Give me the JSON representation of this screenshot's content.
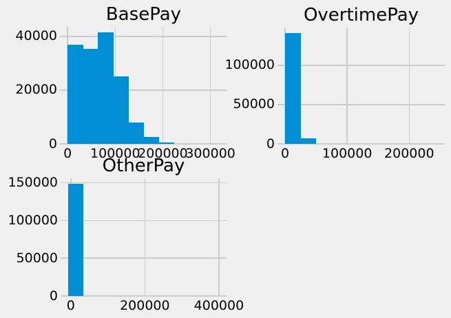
{
  "figure": {
    "background": "#f0f0f0",
    "grid_color": "#cbcbcb",
    "bar_color": "#008fd5",
    "text_color": "#000000"
  },
  "chart_data": [
    {
      "id": "basepay",
      "type": "bar",
      "kind": "histogram",
      "title": "BasePay",
      "xlabel": "",
      "ylabel": "",
      "grid": true,
      "legend": false,
      "xlim": [
        -16138,
        335247
      ],
      "ylim": [
        0,
        43580
      ],
      "xticks": [
        0,
        100000,
        200000,
        300000
      ],
      "yticks": [
        0,
        20000,
        40000
      ],
      "bin_start": -166,
      "bin_width": 31944,
      "values": [
        36900,
        35300,
        41600,
        25000,
        8000,
        2500,
        470,
        80,
        10,
        2
      ]
    },
    {
      "id": "overtimepay",
      "type": "bar",
      "kind": "histogram",
      "title": "OvertimePay",
      "xlabel": "",
      "ylabel": "",
      "grid": true,
      "legend": false,
      "xlim": [
        -12257,
        257389
      ],
      "ylim": [
        0,
        148100
      ],
      "xticks": [
        0,
        100000,
        200000
      ],
      "yticks": [
        0,
        50000,
        100000
      ],
      "bin_start": 0,
      "bin_width": 24513,
      "values": [
        141000,
        7000,
        400,
        130,
        50,
        25,
        12,
        6,
        3,
        1
      ]
    },
    {
      "id": "otherpay",
      "type": "bar",
      "kind": "histogram",
      "title": "OtherPay",
      "xlabel": "",
      "ylabel": "",
      "grid": true,
      "legend": false,
      "xlim": [
        -27420,
        420546
      ],
      "ylim": [
        0,
        156100
      ],
      "xticks": [
        0,
        200000,
        400000
      ],
      "yticks": [
        0,
        50000,
        100000,
        150000
      ],
      "bin_start": -7058,
      "bin_width": 40724,
      "values": [
        148650,
        200,
        70,
        30,
        15,
        8,
        4,
        2,
        1,
        1
      ]
    }
  ]
}
